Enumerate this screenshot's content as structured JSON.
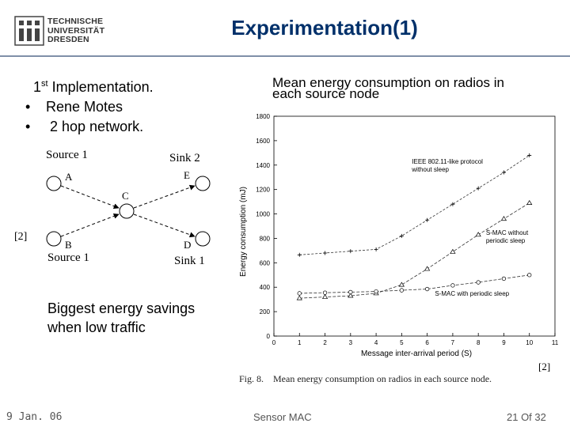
{
  "header": {
    "logo_lines": [
      "TECHNISCHE",
      "UNIVERSITÄT",
      "DRESDEN"
    ],
    "title": "Experimentation(1)"
  },
  "bullets": {
    "heading_num": "1",
    "heading_sup": "st",
    "heading_rest": " Implementation.",
    "items": [
      "Rene Motes",
      " 2 hop network."
    ]
  },
  "network": {
    "labels": {
      "source1_top": "Source 1",
      "sink2": "Sink 2",
      "node_a": "A",
      "node_b": "B",
      "node_c": "C",
      "node_d": "D",
      "node_e": "E",
      "source1_bottom": "Source 1",
      "sink1": "Sink 1"
    },
    "ref": "[2]"
  },
  "savings_text": [
    "Biggest energy savings",
    "when low traffic"
  ],
  "chart_caption": [
    "Mean energy consumption on radios in",
    "each source node"
  ],
  "chart_data": {
    "type": "line",
    "ylabel": "Energy consumption (mJ)",
    "xlabel": "Message inter-arrival period (S)",
    "xlim": [
      0,
      11
    ],
    "ylim": [
      0,
      1800
    ],
    "xticks": [
      0,
      1,
      2,
      3,
      4,
      5,
      6,
      7,
      8,
      9,
      10,
      11
    ],
    "yticks": [
      0,
      200,
      400,
      600,
      800,
      1000,
      1200,
      1400,
      1600,
      1800
    ],
    "series": [
      {
        "name": "IEEE 802.11-like protocol without sleep",
        "marker": "plus",
        "x": [
          1,
          2,
          3,
          4,
          5,
          6,
          7,
          8,
          9,
          10
        ],
        "y": [
          665,
          680,
          695,
          710,
          820,
          950,
          1080,
          1210,
          1340,
          1480
        ]
      },
      {
        "name": "S-MAC without periodic sleep",
        "marker": "triangle",
        "x": [
          1,
          2,
          3,
          4,
          5,
          6,
          7,
          8,
          9,
          10
        ],
        "y": [
          310,
          320,
          330,
          350,
          420,
          550,
          690,
          830,
          960,
          1090
        ]
      },
      {
        "name": "S-MAC with periodic sleep",
        "marker": "circle",
        "x": [
          1,
          2,
          3,
          4,
          5,
          6,
          7,
          8,
          9,
          10
        ],
        "y": [
          350,
          355,
          360,
          365,
          375,
          385,
          415,
          440,
          470,
          500
        ]
      }
    ],
    "annotations": [
      {
        "lines": [
          "IEEE 802.11-like protocol",
          "without sleep"
        ],
        "x": 5.4,
        "y": 1410
      },
      {
        "lines": [
          "S-MAC without",
          "periodic sleep"
        ],
        "x": 8.3,
        "y": 830
      },
      {
        "lines": [
          "S-MAC with periodic sleep"
        ],
        "x": 6.3,
        "y": 330
      }
    ],
    "fig_caption": "Fig. 8.    Mean energy consumption on radios in each source node.",
    "ref": "[2]"
  },
  "footer": {
    "date": "9 Jan. 06",
    "center": "Sensor MAC",
    "page": "21 Of 32"
  }
}
